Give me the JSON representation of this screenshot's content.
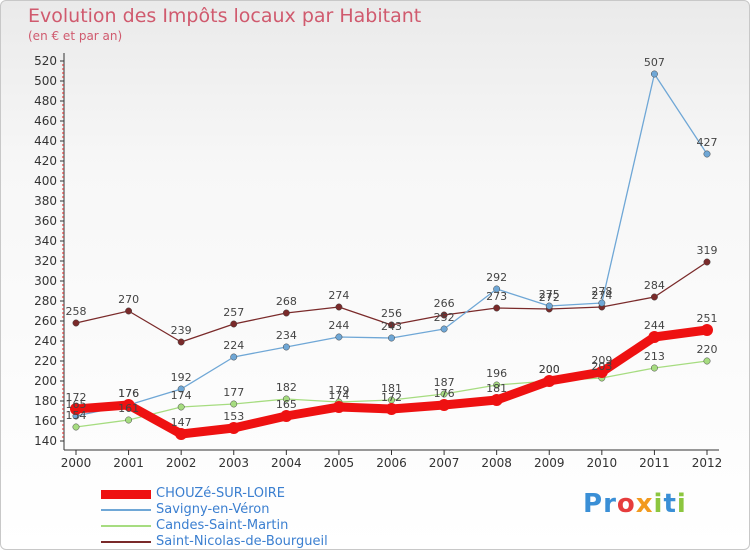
{
  "chart_data": {
    "type": "line",
    "title": "Evolution des Impôts locaux par Habitant",
    "subtitle": "(en € et par an)",
    "x": [
      "2000",
      "2001",
      "2002",
      "2003",
      "2004",
      "2005",
      "2006",
      "2007",
      "2008",
      "2009",
      "2010",
      "2011",
      "2012"
    ],
    "ylim": [
      140,
      520
    ],
    "yticks": [
      140,
      160,
      180,
      200,
      220,
      240,
      260,
      280,
      300,
      320,
      340,
      360,
      380,
      400,
      420,
      440,
      460,
      480,
      500,
      520
    ],
    "grid": false,
    "legend_position": "bottom-left",
    "series": [
      {
        "name": "CHOUZé-SUR-LOIRE",
        "color": "#ee1111",
        "values": [
          172,
          176,
          147,
          153,
          165,
          174,
          172,
          176,
          181,
          200,
          209,
          244,
          251
        ]
      },
      {
        "name": "Savigny-en-Véron",
        "color": "#6fa7d6",
        "values": [
          165,
          176,
          192,
          224,
          234,
          244,
          243,
          252,
          292,
          275,
          278,
          507,
          427
        ]
      },
      {
        "name": "Candes-Saint-Martin",
        "color": "#a6dc80",
        "values": [
          154,
          161,
          174,
          177,
          182,
          179,
          181,
          187,
          196,
          200,
          203,
          213,
          220
        ]
      },
      {
        "name": "Saint-Nicolas-de-Bourgueil",
        "color": "#7a2a2a",
        "values": [
          258,
          270,
          239,
          257,
          268,
          274,
          256,
          266,
          273,
          272,
          274,
          284,
          319
        ]
      }
    ]
  },
  "logo": {
    "text": "Proxiti",
    "letters": [
      "P",
      "r",
      "o",
      "x",
      "i",
      "t",
      "i"
    ],
    "colors": [
      "#3a8fd6",
      "#3a8fd6",
      "#e63c3c",
      "#f29a1f",
      "#8cc63f",
      "#3a8fd6",
      "#8cc63f"
    ]
  }
}
